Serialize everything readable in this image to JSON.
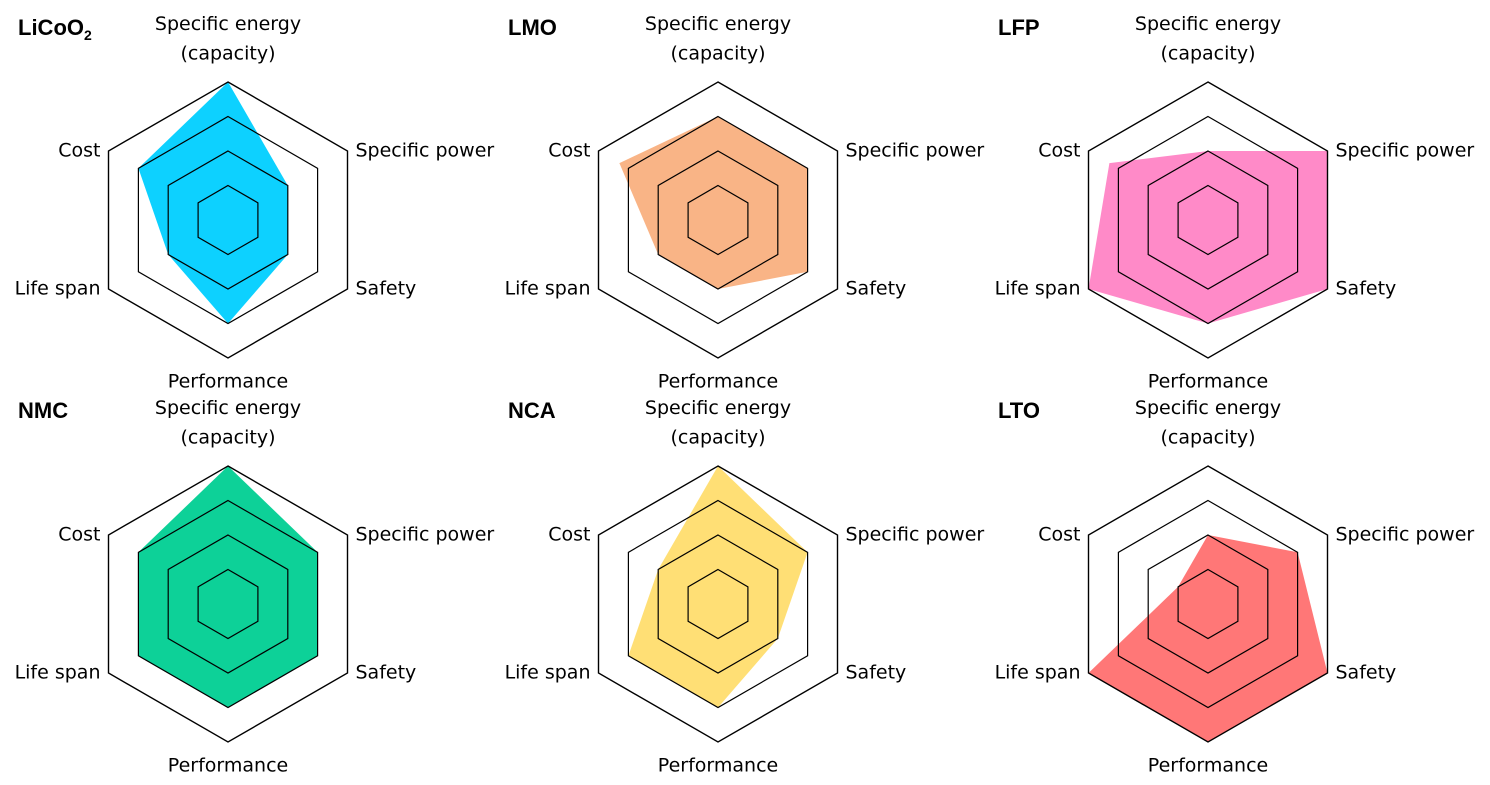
{
  "axes": [
    "Specific energy\n(capacity)",
    "Specific power",
    "Safety",
    "Performance",
    "Life span",
    "Cost"
  ],
  "chart_data": [
    {
      "type": "radar",
      "title": "LiCoO",
      "title_sub": "2",
      "color": "#00CFFF",
      "categories": [
        "Specific energy (capacity)",
        "Specific power",
        "Safety",
        "Performance",
        "Life span",
        "Cost"
      ],
      "values": [
        4,
        2,
        2,
        3,
        2,
        3
      ],
      "range": [
        0,
        4
      ],
      "levels": 4
    },
    {
      "type": "radar",
      "title": "LMO",
      "color": "#F9B07F",
      "categories": [
        "Specific energy (capacity)",
        "Specific power",
        "Safety",
        "Performance",
        "Life span",
        "Cost"
      ],
      "values": [
        3,
        3,
        3,
        2,
        2,
        3.3
      ],
      "range": [
        0,
        4
      ],
      "levels": 4
    },
    {
      "type": "radar",
      "title": "LFP",
      "color": "#FF84C5",
      "categories": [
        "Specific energy (capacity)",
        "Specific power",
        "Safety",
        "Performance",
        "Life span",
        "Cost"
      ],
      "values": [
        2,
        4,
        4,
        3,
        4,
        3.3
      ],
      "range": [
        0,
        4
      ],
      "levels": 4
    },
    {
      "type": "radar",
      "title": "NMC",
      "color": "#00CF92",
      "categories": [
        "Specific energy (capacity)",
        "Specific power",
        "Safety",
        "Performance",
        "Life span",
        "Cost"
      ],
      "values": [
        4,
        3,
        3,
        3,
        3,
        3
      ],
      "range": [
        0,
        4
      ],
      "levels": 4
    },
    {
      "type": "radar",
      "title": "NCA",
      "color": "#FFDD6E",
      "categories": [
        "Specific energy (capacity)",
        "Specific power",
        "Safety",
        "Performance",
        "Life span",
        "Cost"
      ],
      "values": [
        4,
        3,
        2,
        3,
        3,
        2
      ],
      "range": [
        0,
        4
      ],
      "levels": 4
    },
    {
      "type": "radar",
      "title": "LTO",
      "color": "#FF7070",
      "categories": [
        "Specific energy (capacity)",
        "Specific power",
        "Safety",
        "Performance",
        "Life span",
        "Cost"
      ],
      "values": [
        2,
        3,
        4,
        4,
        4,
        1
      ],
      "range": [
        0,
        4
      ],
      "levels": 4
    }
  ]
}
